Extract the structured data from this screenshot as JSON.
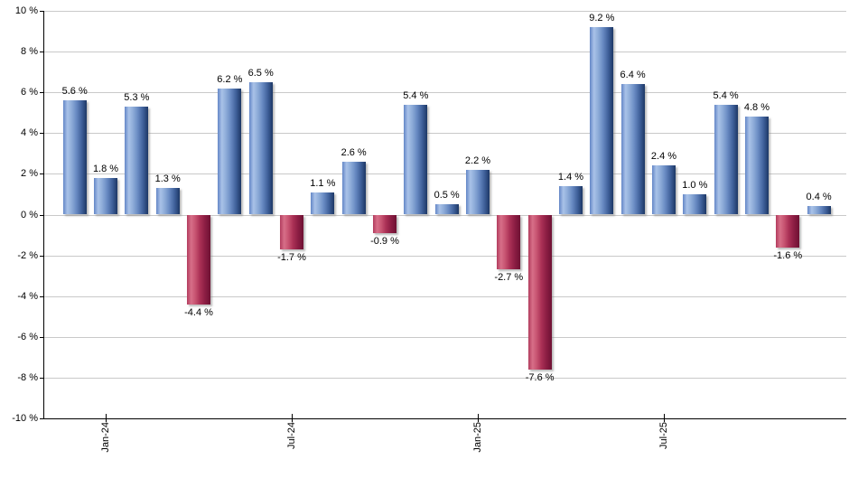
{
  "chart_data": {
    "type": "bar",
    "title": "",
    "xlabel": "",
    "ylabel": "",
    "ylim": [
      -10,
      10
    ],
    "y_tick_step": 2,
    "grid": true,
    "legend": null,
    "y_tick_labels": [
      "10 %",
      "8 %",
      "6 %",
      "4 %",
      "2 %",
      "0 %",
      "-2 %",
      "-4 %",
      "-6 %",
      "-8 %",
      "-10 %"
    ],
    "x_tick_labels": [
      {
        "label": "Jan-24",
        "bar_index": 1
      },
      {
        "label": "Jul-24",
        "bar_index": 7
      },
      {
        "label": "Jan-25",
        "bar_index": 13
      },
      {
        "label": "Jul-25",
        "bar_index": 19
      }
    ],
    "bars": [
      {
        "value": 5.6,
        "label": "5.6 %"
      },
      {
        "value": 1.8,
        "label": "1.8 %"
      },
      {
        "value": 5.3,
        "label": "5.3 %"
      },
      {
        "value": 1.3,
        "label": "1.3 %"
      },
      {
        "value": -4.4,
        "label": "-4.4 %"
      },
      {
        "value": 6.2,
        "label": "6.2 %"
      },
      {
        "value": 6.5,
        "label": "6.5 %"
      },
      {
        "value": -1.7,
        "label": "-1.7 %"
      },
      {
        "value": 1.1,
        "label": "1.1 %"
      },
      {
        "value": 2.6,
        "label": "2.6 %"
      },
      {
        "value": -0.9,
        "label": "-0.9 %"
      },
      {
        "value": 5.4,
        "label": "5.4 %"
      },
      {
        "value": 0.5,
        "label": "0.5 %"
      },
      {
        "value": 2.2,
        "label": "2.2 %"
      },
      {
        "value": -2.7,
        "label": "-2.7 %"
      },
      {
        "value": -7.6,
        "label": "-7.6 %"
      },
      {
        "value": 1.4,
        "label": "1.4 %"
      },
      {
        "value": 9.2,
        "label": "9.2 %"
      },
      {
        "value": 6.4,
        "label": "6.4 %"
      },
      {
        "value": 2.4,
        "label": "2.4 %"
      },
      {
        "value": 1.0,
        "label": "1.0 %"
      },
      {
        "value": 5.4,
        "label": "5.4 %"
      },
      {
        "value": 4.8,
        "label": "4.8 %"
      },
      {
        "value": -1.6,
        "label": "-1.6 %"
      },
      {
        "value": 0.4,
        "label": "0.4 %"
      }
    ],
    "colors": {
      "background": "#ffffff",
      "gridline": "#c9c9c9",
      "axis": "#000000",
      "label_text": "#000000",
      "positive_gradient": [
        "#6487c7",
        "#a9c2e8",
        "#8fadd9",
        "#6a8cc4",
        "#40619b",
        "#1c3765"
      ],
      "negative_gradient": [
        "#b23c5e",
        "#d76f88",
        "#c85572",
        "#ab3156",
        "#8a1c42",
        "#6e1133"
      ]
    }
  }
}
